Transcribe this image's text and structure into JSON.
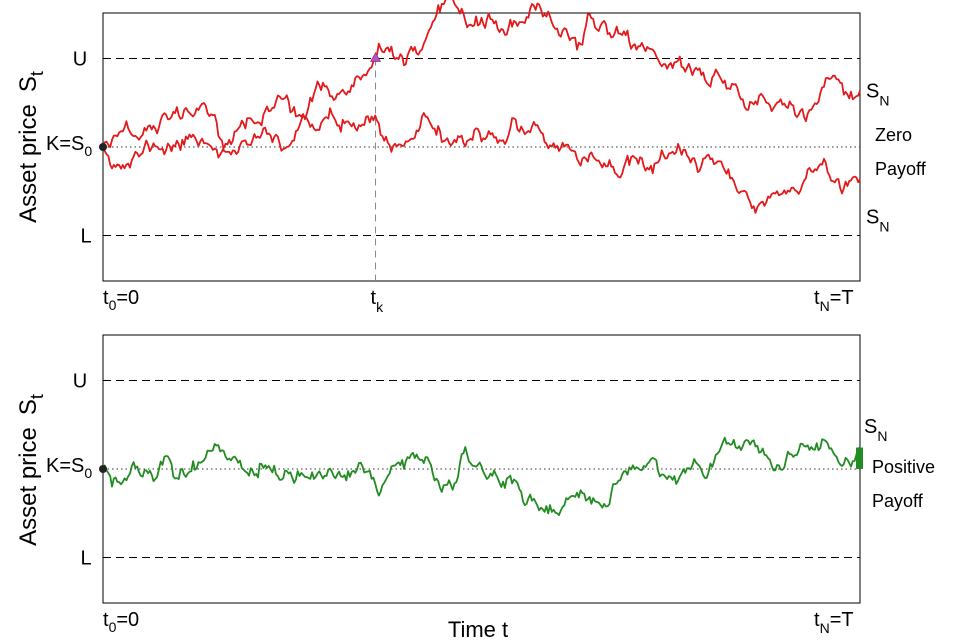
{
  "chart_data": [
    {
      "type": "line",
      "ylabel": "Asset price",
      "ylabel_symbol": "S",
      "ylabel_sub": "t",
      "xlim": [
        0,
        1
      ],
      "ylim": [
        0,
        1
      ],
      "levels": {
        "U": 0.83,
        "K": 0.5,
        "L": 0.17
      },
      "level_labels": {
        "U": "U",
        "L": "L",
        "K_main": "K=S",
        "K_sub": "0"
      },
      "tick_labels": {
        "t0_main": "t",
        "t0_sub": "0",
        "t0_rest": "=0",
        "tk_main": "t",
        "tk_sub": "k",
        "tN_main": "t",
        "tN_sub": "N",
        "tN_rest": "=T"
      },
      "barrier_hit_time": 0.36,
      "series": [
        {
          "color": "#e31a1c",
          "seed": 11,
          "end": 0.71,
          "through": [
            [
              0.36,
              0.83
            ]
          ]
        },
        {
          "color": "#e31a1c",
          "seed": 29,
          "end": 0.38,
          "through": [
            [
              0.29,
              0.6
            ],
            [
              0.5,
              0.52
            ]
          ]
        }
      ],
      "end_labels": [
        {
          "main": "S",
          "sub": "N",
          "y": 0.71
        },
        {
          "main": "S",
          "sub": "N",
          "y": 0.24
        }
      ],
      "annotation_lines": [
        "Zero",
        "Payoff"
      ],
      "colors": {
        "path": "#e31a1c",
        "marker": "#c050c0",
        "start_dot": "#222222"
      }
    },
    {
      "type": "line",
      "xlabel": "Time t",
      "ylabel": "Asset price",
      "ylabel_symbol": "S",
      "ylabel_sub": "t",
      "xlim": [
        0,
        1
      ],
      "ylim": [
        0,
        1
      ],
      "levels": {
        "U": 0.83,
        "K": 0.5,
        "L": 0.17
      },
      "level_labels": {
        "U": "U",
        "L": "L",
        "K_main": "K=S",
        "K_sub": "0"
      },
      "tick_labels": {
        "t0_main": "t",
        "t0_sub": "0",
        "t0_rest": "=0",
        "tN_main": "t",
        "tN_sub": "N",
        "tN_rest": "=T"
      },
      "series": [
        {
          "color": "#228b22",
          "seed": 47,
          "end": 0.58,
          "through": [
            [
              0.5,
              0.51
            ],
            [
              0.65,
              0.38
            ]
          ]
        }
      ],
      "end_labels": [
        {
          "main": "S",
          "sub": "N",
          "y": 0.66
        }
      ],
      "annotation_lines": [
        "Positive",
        "Payoff"
      ],
      "payoff_bar": [
        0.5,
        0.58
      ],
      "colors": {
        "path": "#228b22",
        "payoff_bar": "#228b22",
        "start_dot": "#222222"
      }
    }
  ]
}
